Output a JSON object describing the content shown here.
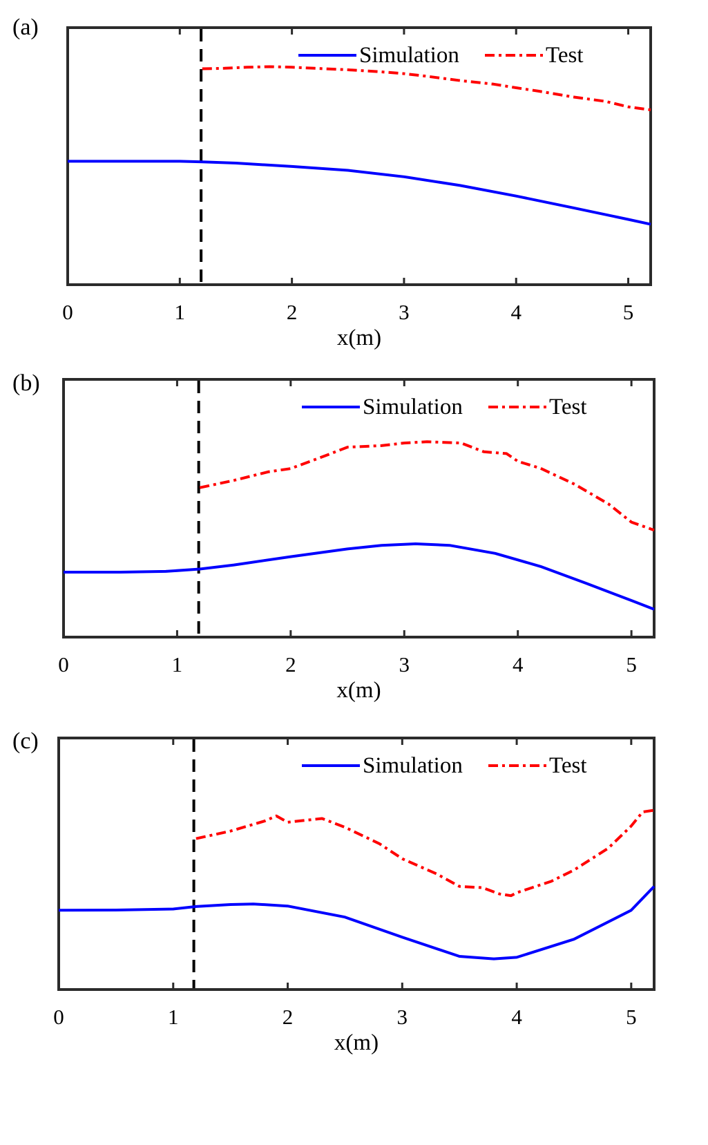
{
  "colors": {
    "simulation": "#0000ff",
    "test": "#ff0000",
    "marker_line": "#000000",
    "axes": "#2b2b2b"
  },
  "chart_data": [
    {
      "panel_label": "(a)",
      "type": "line",
      "xlabel": "x(m)",
      "ylabel": "",
      "xlim": [
        0,
        5.2
      ],
      "ylim": [
        0,
        100
      ],
      "xticks": [
        "0",
        "1",
        "2",
        "3",
        "4",
        "5"
      ],
      "grid": false,
      "legend_position": "top-right",
      "vline_x": 1.19,
      "series": [
        {
          "name": "Simulation",
          "style": "solid",
          "color": "#0000ff",
          "x": [
            0,
            0.5,
            1.0,
            1.2,
            1.5,
            2.0,
            2.5,
            3.0,
            3.5,
            4.0,
            4.5,
            5.0,
            5.2
          ],
          "y": [
            48,
            48,
            48,
            47.8,
            47.3,
            46,
            44.5,
            42,
            38.6,
            34.5,
            30,
            25.4,
            23.5
          ]
        },
        {
          "name": "Test",
          "style": "dashdot",
          "color": "#ff0000",
          "x": [
            1.2,
            1.4,
            1.6,
            1.8,
            2.0,
            2.2,
            2.5,
            2.8,
            3.0,
            3.2,
            3.5,
            3.8,
            4.0,
            4.2,
            4.5,
            4.8,
            5.0,
            5.2
          ],
          "y": [
            84,
            84.2,
            84.6,
            84.8,
            84.6,
            84.2,
            83.6,
            82.8,
            82.1,
            81.1,
            79.4,
            78,
            76.6,
            75.3,
            73.1,
            71.3,
            69.2,
            68
          ]
        }
      ]
    },
    {
      "panel_label": "(b)",
      "type": "line",
      "xlabel": "x(m)",
      "ylabel": "",
      "xlim": [
        0,
        5.2
      ],
      "ylim": [
        0,
        100
      ],
      "xticks": [
        "0",
        "1",
        "2",
        "3",
        "4",
        "5"
      ],
      "grid": false,
      "legend_position": "top-right",
      "vline_x": 1.19,
      "series": [
        {
          "name": "Simulation",
          "style": "solid",
          "color": "#0000ff",
          "x": [
            0,
            0.5,
            0.9,
            1.2,
            1.5,
            2.0,
            2.5,
            2.8,
            3.1,
            3.4,
            3.8,
            4.2,
            4.6,
            5.0,
            5.2
          ],
          "y": [
            25.2,
            25.2,
            25.5,
            26.4,
            28,
            31.2,
            34.2,
            35.6,
            36.2,
            35.6,
            32.5,
            27.4,
            20.9,
            14.2,
            10.8
          ]
        },
        {
          "name": "Test",
          "style": "dashdot",
          "color": "#ff0000",
          "x": [
            1.2,
            1.5,
            1.8,
            2.0,
            2.3,
            2.5,
            2.8,
            3.0,
            3.2,
            3.5,
            3.7,
            3.9,
            4.0,
            4.2,
            4.5,
            4.8,
            5.0,
            5.2
          ],
          "y": [
            58,
            60.8,
            64.1,
            65.4,
            70.3,
            73.7,
            74.3,
            75.3,
            75.8,
            75.3,
            71.9,
            71.2,
            68.2,
            65.5,
            59.3,
            51.6,
            44.6,
            41.5
          ]
        }
      ]
    },
    {
      "panel_label": "(c)",
      "type": "line",
      "xlabel": "x(m)",
      "ylabel": "",
      "xlim": [
        0,
        5.2
      ],
      "ylim": [
        0,
        100
      ],
      "xticks": [
        "0",
        "1",
        "2",
        "3",
        "4",
        "5"
      ],
      "grid": false,
      "legend_position": "top-right",
      "vline_x": 1.18,
      "series": [
        {
          "name": "Simulation",
          "style": "solid",
          "color": "#0000ff",
          "x": [
            0,
            0.5,
            1.0,
            1.2,
            1.5,
            1.7,
            2.0,
            2.5,
            3.0,
            3.5,
            3.8,
            4.0,
            4.5,
            5.0,
            5.2
          ],
          "y": [
            31.5,
            31.6,
            32,
            33,
            33.8,
            34,
            33.2,
            28.8,
            20.8,
            13.2,
            12.2,
            12.8,
            20,
            31.5,
            41
          ]
        },
        {
          "name": "Test",
          "style": "dashdot",
          "color": "#ff0000",
          "x": [
            1.2,
            1.5,
            1.8,
            1.9,
            2.0,
            2.3,
            2.5,
            2.8,
            3.0,
            3.3,
            3.5,
            3.7,
            3.85,
            3.95,
            4.0,
            4.3,
            4.5,
            4.8,
            5.0,
            5.1,
            5.2
          ],
          "y": [
            60,
            63,
            67,
            69,
            66.5,
            68,
            64.5,
            58,
            52,
            46,
            41,
            40.5,
            38,
            37.3,
            38.5,
            43,
            47.5,
            56.2,
            65,
            70.6,
            71.3
          ]
        }
      ]
    }
  ]
}
